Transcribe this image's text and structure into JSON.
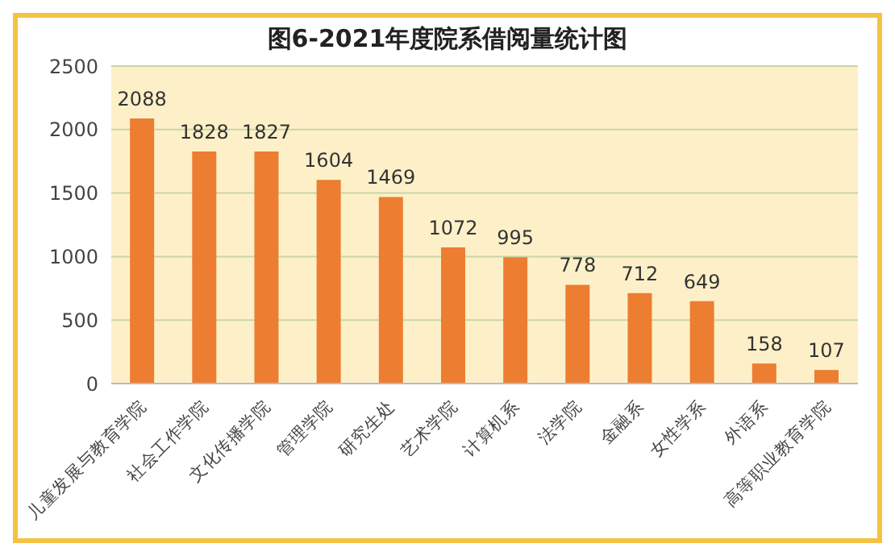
{
  "chart_data": {
    "type": "bar",
    "title": "图6-2021年度院系借阅量统计图",
    "categories": [
      "儿童发展与教育学院",
      "社会工作学院",
      "文化传播学院",
      "管理学院",
      "研究生处",
      "艺术学院",
      "计算机系",
      "法学院",
      "金融系",
      "女性学系",
      "外语系",
      "高等职业教育学院"
    ],
    "values": [
      2088,
      1828,
      1827,
      1604,
      1469,
      1072,
      995,
      778,
      712,
      649,
      158,
      107
    ],
    "color": "#ed7d31",
    "ylim": [
      0,
      2500
    ],
    "yticks": [
      0,
      500,
      1000,
      1500,
      2000,
      2500
    ],
    "grid": "y",
    "data_labels": true
  }
}
